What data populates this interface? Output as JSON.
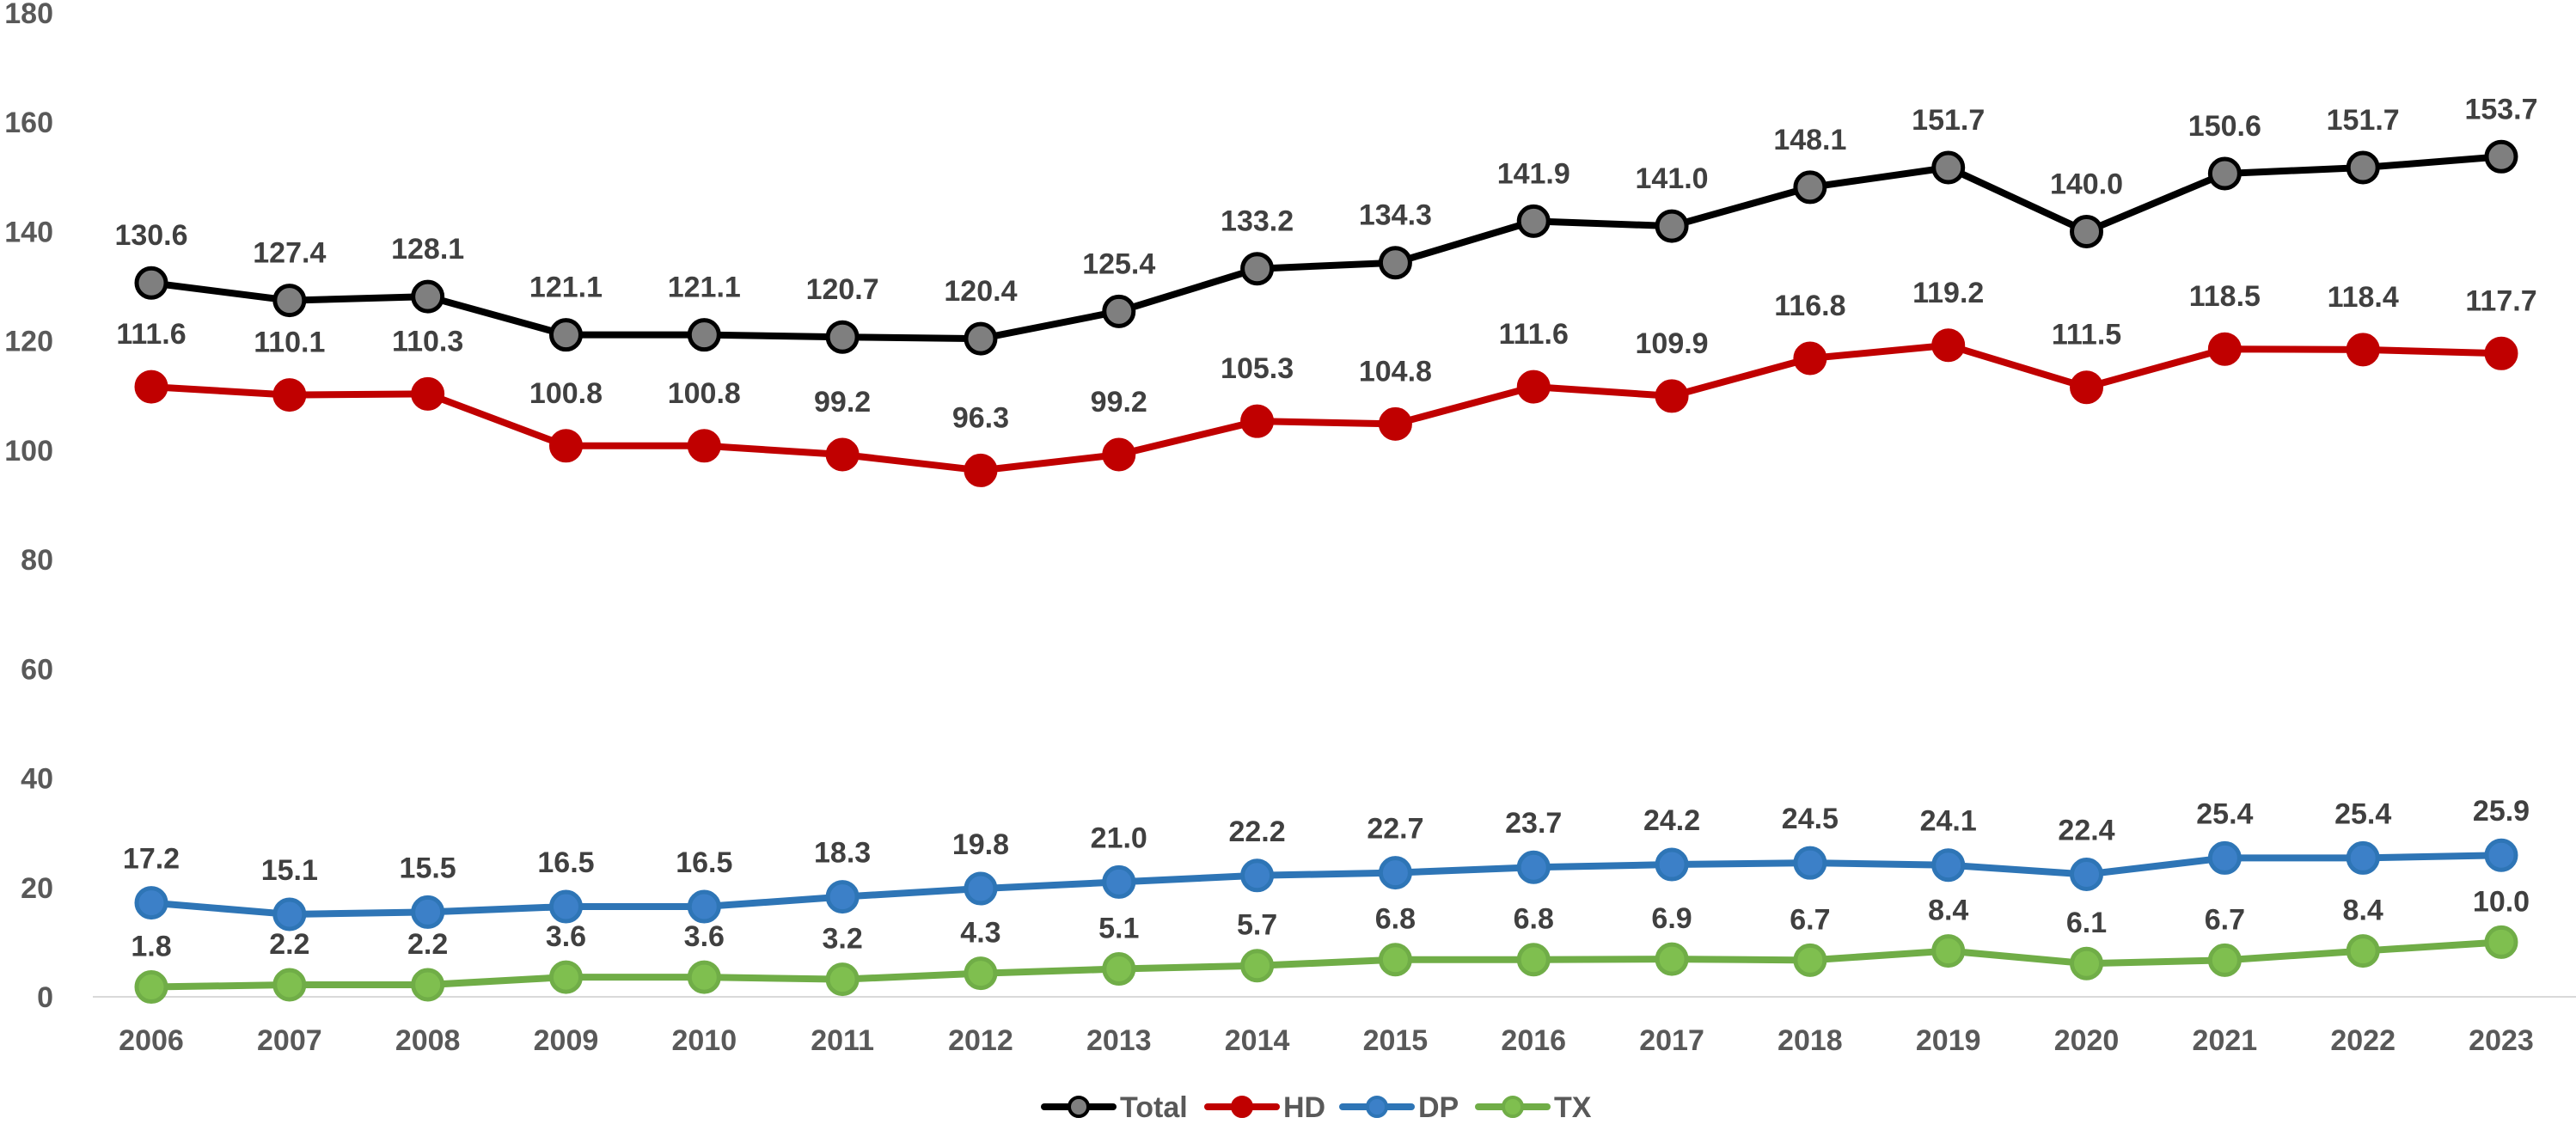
{
  "chart_data": {
    "type": "line",
    "title": "",
    "xlabel": "",
    "ylabel": "",
    "ylim": [
      0,
      180
    ],
    "yticks": [
      0,
      20,
      40,
      60,
      80,
      100,
      120,
      140,
      160,
      180
    ],
    "grid": false,
    "legend_position": "bottom",
    "categories": [
      "2006",
      "2007",
      "2008",
      "2009",
      "2010",
      "2011",
      "2012",
      "2013",
      "2014",
      "2015",
      "2016",
      "2017",
      "2018",
      "2019",
      "2020",
      "2021",
      "2022",
      "2023"
    ],
    "series": [
      {
        "name": "Total",
        "color": "#000000",
        "marker_color": "#7f7f7f",
        "values": [
          130.6,
          127.4,
          128.1,
          121.1,
          121.1,
          120.7,
          120.4,
          125.4,
          133.2,
          134.3,
          141.9,
          141.0,
          148.1,
          151.7,
          140.0,
          150.6,
          151.7,
          153.7
        ],
        "labels": [
          "130.6",
          "127.4",
          "128.1",
          "121.1",
          "121.1",
          "120.7",
          "120.4",
          "125.4",
          "133.2",
          "134.3",
          "141.9",
          "141.0",
          "148.1",
          "151.7",
          "140.0",
          "150.6",
          "151.7",
          "153.7"
        ]
      },
      {
        "name": "HD",
        "color": "#c00000",
        "marker_color": "#c00000",
        "values": [
          111.6,
          110.1,
          110.3,
          100.8,
          100.8,
          99.2,
          96.3,
          99.2,
          105.3,
          104.8,
          111.6,
          109.9,
          116.8,
          119.2,
          111.5,
          118.5,
          118.4,
          117.7
        ],
        "labels": [
          "111.6",
          "110.1",
          "110.3",
          "100.8",
          "100.8",
          "99.2",
          "96.3",
          "99.2",
          "105.3",
          "104.8",
          "111.6",
          "109.9",
          "116.8",
          "119.2",
          "111.5",
          "118.5",
          "118.4",
          "117.7"
        ]
      },
      {
        "name": "DP",
        "color": "#2e75b6",
        "marker_color": "#3c80c8",
        "values": [
          17.2,
          15.1,
          15.5,
          16.5,
          16.5,
          18.3,
          19.8,
          21.0,
          22.2,
          22.7,
          23.7,
          24.2,
          24.5,
          24.1,
          22.4,
          25.4,
          25.4,
          25.9
        ],
        "labels": [
          "17.2",
          "15.1",
          "15.5",
          "16.5",
          "16.5",
          "18.3",
          "19.8",
          "21.0",
          "22.2",
          "22.7",
          "23.7",
          "24.2",
          "24.5",
          "24.1",
          "22.4",
          "25.4",
          "25.4",
          "25.9"
        ]
      },
      {
        "name": "TX",
        "color": "#70ad47",
        "marker_color": "#7fbf4f",
        "values": [
          1.8,
          2.2,
          2.2,
          3.6,
          3.6,
          3.2,
          4.3,
          5.1,
          5.7,
          6.8,
          6.8,
          6.9,
          6.7,
          8.4,
          6.1,
          6.7,
          8.4,
          10.0
        ],
        "labels": [
          "1.8",
          "2.2",
          "2.2",
          "3.6",
          "3.6",
          "3.2",
          "4.3",
          "5.1",
          "5.7",
          "6.8",
          "6.8",
          "6.9",
          "6.7",
          "8.4",
          "6.1",
          "6.7",
          "8.4",
          "10.0"
        ]
      }
    ]
  }
}
